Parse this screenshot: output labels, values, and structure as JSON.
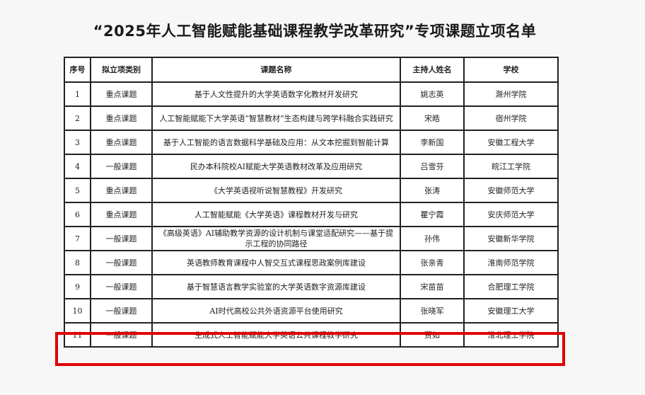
{
  "title": "“2025年人工智能赋能基础课程教学改革研究”专项课题立项名单",
  "table": {
    "headers": [
      "序号",
      "拟立项类别",
      "课题名称",
      "主持人姓名",
      "学校"
    ],
    "rows": [
      [
        "1",
        "重点课题",
        "基于人文性提升的大学英语数字化教材开发研究",
        "姚志英",
        "滁州学院"
      ],
      [
        "2",
        "重点课题",
        "人工智能赋能下大学英语“智慧教材”生态构建与跨学科融合实践研究",
        "宋皓",
        "宿州学院"
      ],
      [
        "3",
        "重点课题",
        "基于人工智能的语言数据科学基础及应用：从文本挖掘到智能计算",
        "李新国",
        "安徽工程大学"
      ],
      [
        "4",
        "一般课题",
        "民办本科院校AI赋能大学英语教材改革及应用研究",
        "吕雪芬",
        "皖江工学院"
      ],
      [
        "5",
        "重点课题",
        "《大学英语视听说智慧教程》开发研究",
        "张涛",
        "安徽师范大学"
      ],
      [
        "6",
        "重点课题",
        "人工智能赋能《大学英语》课程教材开发与研究",
        "瞿宁霞",
        "安庆师范大学"
      ],
      [
        "7",
        "一般课题",
        "《高级英语》AI辅助教学资源的设计机制与课堂适配研究——基于提示工程的协同路径",
        "孙伟",
        "安徽新华学院"
      ],
      [
        "8",
        "一般课题",
        "英语教师教育课程中人智交互式课程思政案例库建设",
        "张亲青",
        "淮南师范学院"
      ],
      [
        "9",
        "一般课题",
        "基于智慧语言教学实验室的大学英语数字资源库建设",
        "宋苗苗",
        "合肥理工学院"
      ],
      [
        "10",
        "一般课题",
        "AI时代高校公共外语资源平台使用研究",
        "张晓军",
        "安徽理工大学"
      ],
      [
        "11",
        "一般课题",
        "生成式人工智能赋能大学英语公共课程教学研究",
        "贾如",
        "淮北理工学院"
      ]
    ],
    "highlighted_row": "11",
    "highlight_color": "#e00000"
  }
}
